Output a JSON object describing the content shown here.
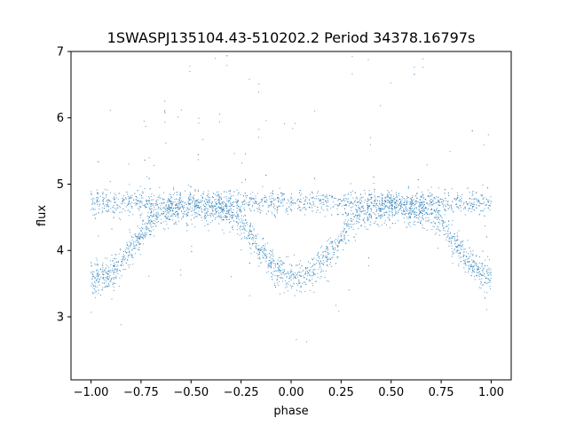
{
  "chart_data": {
    "type": "scatter",
    "title": "1SWASPJ135104.43-510202.2 Period 34378.16797s",
    "xlabel": "phase",
    "ylabel": "flux",
    "xlim": [
      -1.1,
      1.1
    ],
    "ylim": [
      2.05,
      7.0
    ],
    "x_ticks": [
      -1.0,
      -0.75,
      -0.5,
      -0.25,
      0.0,
      0.25,
      0.5,
      0.75,
      1.0
    ],
    "x_tick_labels": [
      "−1.00",
      "−0.75",
      "−0.50",
      "−0.25",
      "0.00",
      "0.25",
      "0.50",
      "0.75",
      "1.00"
    ],
    "y_ticks": [
      3,
      4,
      5,
      6,
      7
    ],
    "y_tick_labels": [
      "3",
      "4",
      "5",
      "6",
      "7"
    ],
    "grid": false,
    "legend": "none",
    "marker_color": "#1f77b4",
    "series": [
      {
        "x": [
          -1.0,
          -0.95,
          -0.9,
          -0.85,
          -0.8,
          -0.75,
          -0.7,
          -0.65,
          -0.6,
          -0.55,
          -0.5,
          -0.45,
          -0.4,
          -0.35,
          -0.3,
          -0.25,
          -0.2,
          -0.15,
          -0.1,
          -0.05,
          0.0,
          0.05,
          0.1,
          0.15,
          0.2,
          0.25,
          0.3,
          0.35,
          0.4,
          0.45,
          0.5,
          0.55,
          0.6,
          0.65,
          0.7,
          0.75,
          0.8,
          0.85,
          0.9,
          0.95,
          1.0
        ],
        "y": [
          3.6,
          3.6,
          3.65,
          3.8,
          4.0,
          4.2,
          4.45,
          4.55,
          4.62,
          4.65,
          4.65,
          4.65,
          4.62,
          4.6,
          4.55,
          4.45,
          4.2,
          4.0,
          3.8,
          3.65,
          3.6,
          3.6,
          3.65,
          3.8,
          4.0,
          4.2,
          4.45,
          4.55,
          4.62,
          4.65,
          4.65,
          4.65,
          4.62,
          4.6,
          4.55,
          4.45,
          4.2,
          4.0,
          3.8,
          3.65,
          3.6
        ]
      },
      {
        "x": [
          -1.0,
          -0.9,
          -0.8,
          -0.7,
          -0.6,
          -0.5,
          -0.4,
          -0.3,
          -0.2,
          -0.1,
          0.0,
          0.1,
          0.2,
          0.3,
          0.4,
          0.5,
          0.6,
          0.7,
          0.8,
          0.9,
          1.0
        ],
        "y": [
          4.72,
          4.72,
          4.73,
          4.72,
          4.72,
          4.73,
          4.72,
          4.72,
          4.73,
          4.72,
          4.72,
          4.72,
          4.73,
          4.72,
          4.72,
          4.73,
          4.72,
          4.72,
          4.73,
          4.72,
          4.72
        ]
      }
    ]
  }
}
